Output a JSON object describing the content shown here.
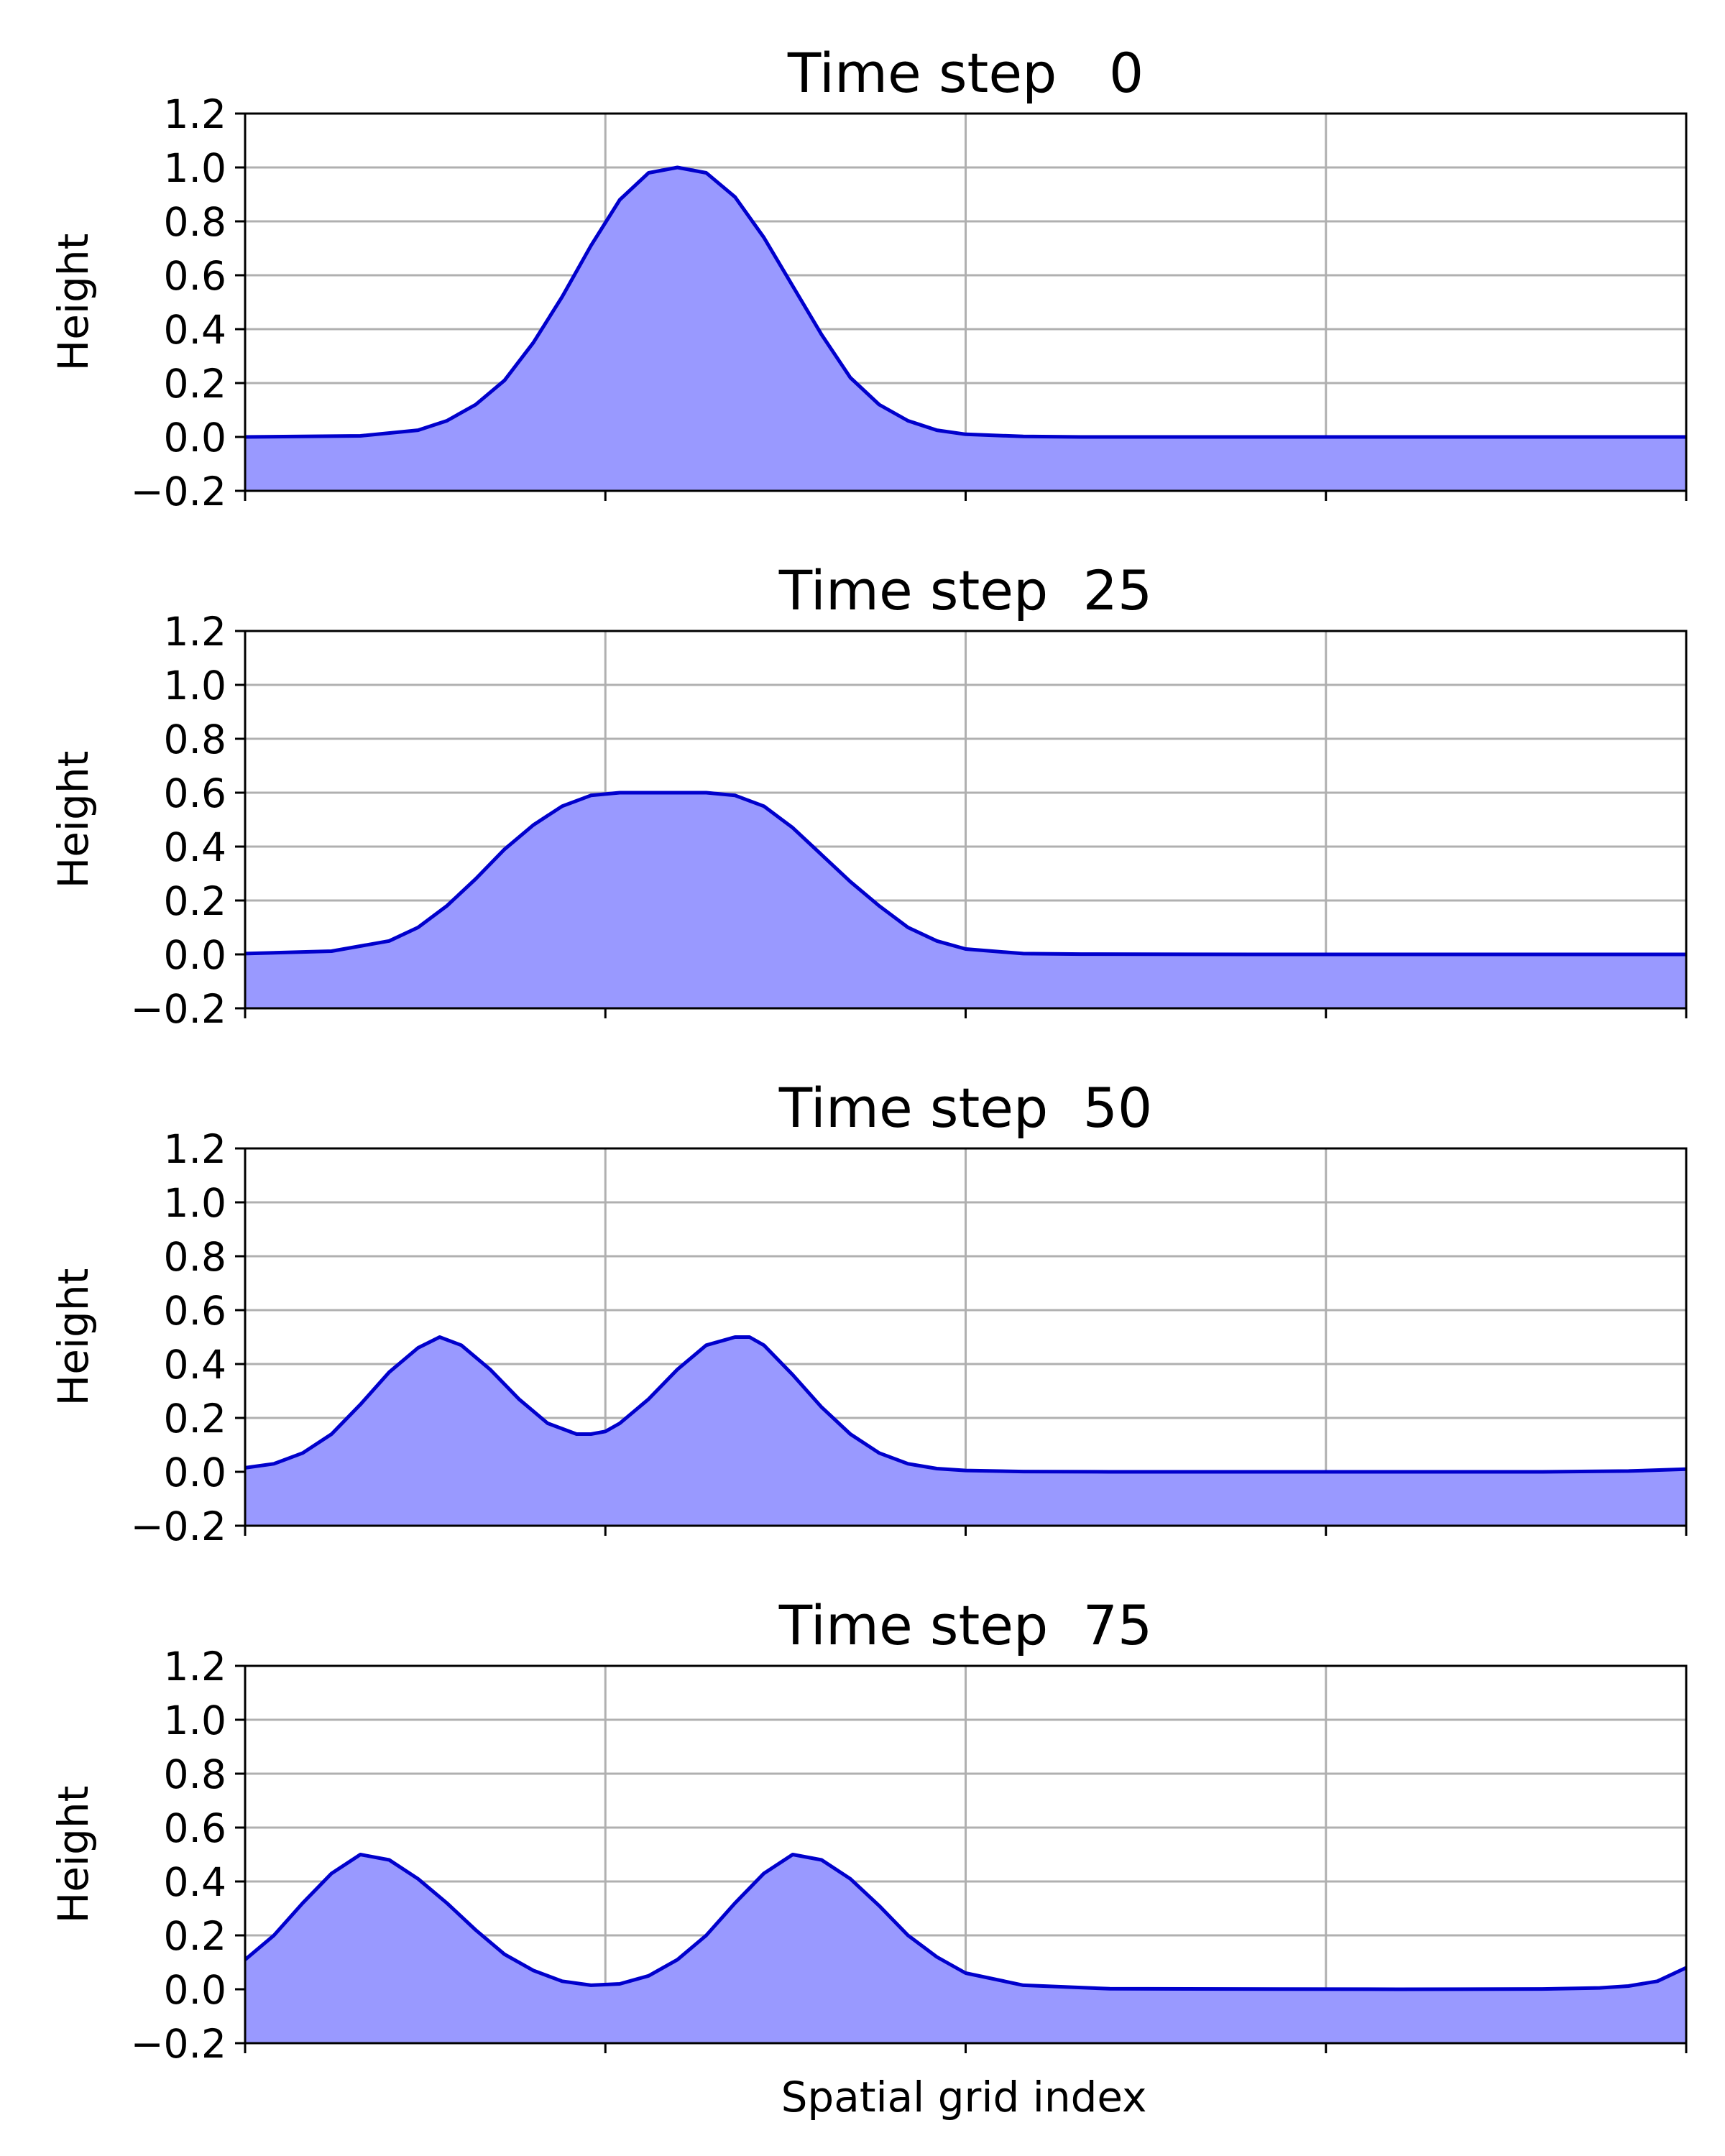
{
  "figure": {
    "xlabel": "Spatial grid index",
    "colors": {
      "line": "#0000cc",
      "fill": "#9999ff",
      "grid": "#b0b0b0",
      "axes": "#000000"
    }
  },
  "chart_data": [
    {
      "type": "area",
      "title": "Time step   0",
      "ylabel": "Height",
      "xlabel": "",
      "ylim": [
        -0.2,
        1.2
      ],
      "xlim": [
        0,
        100
      ],
      "yticks": [
        "1.2",
        "1.0",
        "0.8",
        "0.6",
        "0.4",
        "0.2",
        "0.0",
        "−0.2"
      ],
      "grid": true,
      "x": [
        0,
        8,
        12,
        14,
        16,
        18,
        20,
        22,
        24,
        26,
        28,
        30,
        32,
        34,
        36,
        38,
        40,
        42,
        44,
        46,
        48,
        50,
        54,
        58,
        65,
        75,
        100
      ],
      "y": [
        0,
        0.004,
        0.025,
        0.06,
        0.12,
        0.21,
        0.35,
        0.52,
        0.71,
        0.88,
        0.98,
        1.0,
        0.98,
        0.89,
        0.74,
        0.56,
        0.38,
        0.22,
        0.12,
        0.06,
        0.025,
        0.01,
        0.002,
        0,
        0,
        0,
        0
      ]
    },
    {
      "type": "area",
      "title": "Time step  25",
      "ylabel": "Height",
      "xlabel": "",
      "ylim": [
        -0.2,
        1.2
      ],
      "xlim": [
        0,
        100
      ],
      "yticks": [
        "1.2",
        "1.0",
        "0.8",
        "0.6",
        "0.4",
        "0.2",
        "0.0",
        "−0.2"
      ],
      "grid": true,
      "x": [
        0,
        6,
        10,
        12,
        14,
        16,
        18,
        20,
        22,
        24,
        26,
        28,
        30,
        32,
        34,
        36,
        38,
        40,
        42,
        44,
        46,
        48,
        50,
        54,
        58,
        70,
        100
      ],
      "y": [
        0.003,
        0.012,
        0.05,
        0.1,
        0.18,
        0.28,
        0.39,
        0.48,
        0.55,
        0.59,
        0.6,
        0.6,
        0.6,
        0.6,
        0.59,
        0.55,
        0.47,
        0.37,
        0.27,
        0.18,
        0.1,
        0.05,
        0.02,
        0.003,
        0.001,
        0,
        0
      ]
    },
    {
      "type": "area",
      "title": "Time step  50",
      "ylabel": "Height",
      "xlabel": "",
      "ylim": [
        -0.2,
        1.2
      ],
      "xlim": [
        0,
        100
      ],
      "yticks": [
        "1.2",
        "1.0",
        "0.8",
        "0.6",
        "0.4",
        "0.2",
        "0.0",
        "−0.2"
      ],
      "grid": true,
      "x": [
        0,
        2,
        4,
        6,
        8,
        10,
        12,
        13.5,
        15,
        17,
        19,
        21,
        23,
        24,
        25,
        26,
        28,
        30,
        32,
        34,
        35,
        36,
        38,
        40,
        42,
        44,
        46,
        48,
        50,
        54,
        60,
        80,
        90,
        96,
        100
      ],
      "y": [
        0.015,
        0.03,
        0.07,
        0.14,
        0.25,
        0.37,
        0.46,
        0.5,
        0.47,
        0.38,
        0.27,
        0.18,
        0.14,
        0.14,
        0.15,
        0.18,
        0.27,
        0.38,
        0.47,
        0.5,
        0.5,
        0.47,
        0.36,
        0.24,
        0.14,
        0.07,
        0.03,
        0.012,
        0.005,
        0.001,
        0,
        0,
        0,
        0.003,
        0.01
      ]
    },
    {
      "type": "area",
      "title": "Time step  75",
      "ylabel": "Height",
      "xlabel": "",
      "ylim": [
        -0.2,
        1.2
      ],
      "xlim": [
        0,
        100
      ],
      "yticks": [
        "1.2",
        "1.0",
        "0.8",
        "0.6",
        "0.4",
        "0.2",
        "0.0",
        "−0.2"
      ],
      "grid": true,
      "x": [
        0,
        2,
        4,
        6,
        8,
        10,
        12,
        14,
        16,
        18,
        20,
        22,
        24,
        26,
        28,
        30,
        32,
        34,
        36,
        38,
        40,
        42,
        44,
        46,
        48,
        50,
        54,
        60,
        80,
        90,
        94,
        96,
        98,
        100
      ],
      "y": [
        0.11,
        0.2,
        0.32,
        0.43,
        0.5,
        0.48,
        0.41,
        0.32,
        0.22,
        0.13,
        0.07,
        0.03,
        0.015,
        0.02,
        0.05,
        0.11,
        0.2,
        0.32,
        0.43,
        0.5,
        0.48,
        0.41,
        0.31,
        0.2,
        0.12,
        0.06,
        0.015,
        0.002,
        0,
        0.001,
        0.005,
        0.012,
        0.03,
        0.08
      ]
    }
  ]
}
